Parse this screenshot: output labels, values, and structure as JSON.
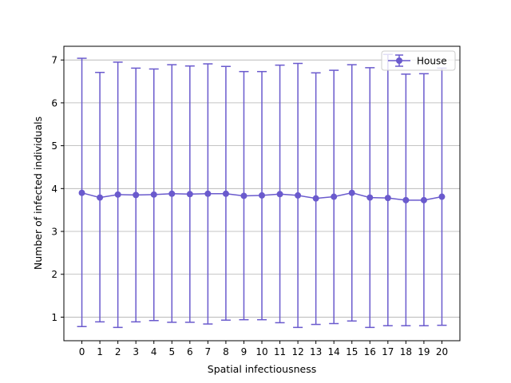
{
  "chart_data": {
    "type": "line",
    "xlabel": "Spatial infectiousness",
    "ylabel": "Number of infected individuals",
    "xlim": [
      -1,
      21
    ],
    "ylim": [
      0.45,
      7.32
    ],
    "x_ticks": [
      0,
      1,
      2,
      3,
      4,
      5,
      6,
      7,
      8,
      9,
      10,
      11,
      12,
      13,
      14,
      15,
      16,
      17,
      18,
      19,
      20
    ],
    "y_ticks": [
      1,
      2,
      3,
      4,
      5,
      6,
      7
    ],
    "grid": "horizontal",
    "legend_position": "top-right",
    "colors": {
      "series": "#6a5acd",
      "grid": "#b0b0b0"
    },
    "series": [
      {
        "name": "House",
        "x": [
          0,
          1,
          2,
          3,
          4,
          5,
          6,
          7,
          8,
          9,
          10,
          11,
          12,
          13,
          14,
          15,
          16,
          17,
          18,
          19,
          20
        ],
        "y": [
          3.9,
          3.79,
          3.86,
          3.85,
          3.86,
          3.88,
          3.87,
          3.88,
          3.88,
          3.83,
          3.84,
          3.87,
          3.84,
          3.77,
          3.81,
          3.9,
          3.79,
          3.78,
          3.73,
          3.73,
          3.81
        ],
        "err_low": [
          0.78,
          0.89,
          0.76,
          0.89,
          0.92,
          0.88,
          0.88,
          0.84,
          0.93,
          0.94,
          0.94,
          0.87,
          0.76,
          0.83,
          0.85,
          0.91,
          0.76,
          0.8,
          0.8,
          0.8,
          0.81
        ],
        "err_high": [
          7.04,
          6.71,
          6.95,
          6.81,
          6.79,
          6.89,
          6.86,
          6.91,
          6.85,
          6.73,
          6.73,
          6.88,
          6.92,
          6.7,
          6.76,
          6.89,
          6.82,
          7.13,
          6.67,
          6.68,
          6.81
        ]
      }
    ]
  }
}
